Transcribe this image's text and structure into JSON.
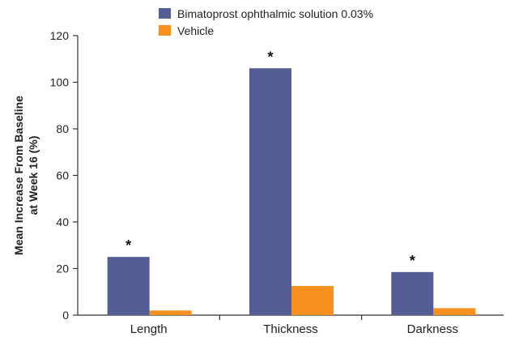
{
  "chart_data": {
    "type": "bar",
    "categories": [
      "Length",
      "Thickness",
      "Darkness"
    ],
    "series": [
      {
        "name": "Bimatoprost ophthalmic solution 0.03%",
        "values": [
          25,
          106,
          18.5
        ],
        "color": "#545d94"
      },
      {
        "name": "Vehicle",
        "values": [
          2,
          12.5,
          3
        ],
        "color": "#f7901e"
      }
    ],
    "title": "",
    "xlabel": "",
    "ylabel": [
      "Mean Increase From Baseline",
      "at Week 16 (%)"
    ],
    "ylim": [
      0,
      120
    ],
    "yticks": [
      0,
      20,
      40,
      60,
      80,
      100,
      120
    ],
    "grid": false,
    "legend_position": "top",
    "annotation_symbol": "*",
    "annotated": [
      [
        true,
        false
      ],
      [
        true,
        false
      ],
      [
        true,
        false
      ]
    ]
  }
}
